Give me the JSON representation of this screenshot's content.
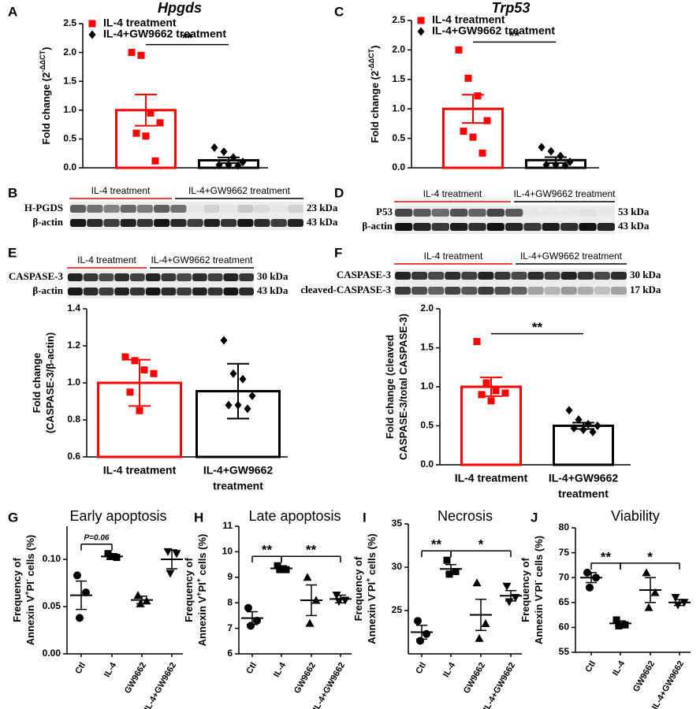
{
  "chart_data": [
    {
      "type": "bar",
      "panel": "A",
      "title": "Hpgds",
      "title_style": "italic",
      "ylabel": [
        [
          "Fold change (2",
          {
            "sup": "-ΔΔCT"
          },
          ")"
        ]
      ],
      "ylim": [
        0,
        2.5
      ],
      "yticks": [
        {
          "value": 0,
          "label": "0.0"
        },
        0.5,
        {
          "value": 1,
          "label": "1.0"
        },
        1.5,
        {
          "value": 2,
          "label": "2.0"
        },
        2.5
      ],
      "legend": true,
      "series": [
        {
          "name": "IL-4 treatment",
          "color": "#ff0000",
          "marker": "square",
          "value": 1.0,
          "error": 0.27,
          "points": [
            2.0,
            1.95,
            0.95,
            0.78,
            0.6,
            0.55,
            0.12
          ]
        },
        {
          "name": "IL-4+GW9662 treatment",
          "color": "#000000",
          "marker": "diamond",
          "value": 0.13,
          "error": 0.05,
          "points": [
            0.35,
            0.28,
            0.18,
            0.1,
            0.05,
            0.05,
            0.04
          ]
        }
      ],
      "annotations": [
        {
          "text": "**",
          "between": [
            0,
            1
          ]
        }
      ]
    },
    {
      "type": "bar",
      "panel": "C",
      "title": "Trp53",
      "title_style": "italic",
      "ylabel": [
        [
          "Fold change (2",
          {
            "sup": "-ΔΔCT"
          },
          ")"
        ]
      ],
      "ylim": [
        0,
        2.5
      ],
      "yticks": [
        {
          "value": 0,
          "label": "0.0"
        },
        0.5,
        {
          "value": 1,
          "label": "1.0"
        },
        1.5,
        {
          "value": 2,
          "label": "2.0"
        },
        2.5
      ],
      "legend": true,
      "series": [
        {
          "name": "IL-4 treatment",
          "color": "#ff0000",
          "marker": "square",
          "value": 1.0,
          "error": 0.24,
          "points": [
            2.0,
            1.52,
            1.22,
            0.8,
            0.62,
            0.52,
            0.25
          ]
        },
        {
          "name": "IL-4+GW9662 treatment",
          "color": "#000000",
          "marker": "diamond",
          "value": 0.13,
          "error": 0.05,
          "points": [
            0.35,
            0.28,
            0.2,
            0.1,
            0.05,
            0.05,
            0.04
          ]
        }
      ],
      "annotations": [
        {
          "text": "**",
          "between": [
            0,
            1
          ]
        }
      ]
    },
    {
      "type": "bar",
      "ylabel": [
        [
          "Fold change"
        ],
        [
          "(CASPASE-3/β-actin)"
        ]
      ],
      "ylim": [
        0.6,
        1.4
      ],
      "yticks": [
        0.6,
        0.8,
        {
          "value": 1,
          "label": "1.0"
        },
        1.2,
        1.4
      ],
      "categories": [
        [
          "IL-4 treatment"
        ],
        [
          "IL-4+GW9662",
          "treatment"
        ]
      ],
      "series": [
        {
          "color": "#ff0000",
          "marker": "square",
          "value": 1.0,
          "error": 0.125,
          "points": [
            1.14,
            1.12,
            1.07,
            1.05,
            0.95,
            0.85
          ]
        },
        {
          "color": "#000000",
          "marker": "diamond",
          "value": 0.955,
          "error": 0.148,
          "points": [
            1.23,
            1.05,
            1.02,
            0.93,
            0.88,
            0.88,
            0.86
          ]
        }
      ]
    },
    {
      "type": "bar",
      "ylabel": [
        [
          "Fold change (cleaved"
        ],
        [
          "CASPASE-3/total CASPASE-3)"
        ]
      ],
      "ylim": [
        0,
        2.0
      ],
      "yticks": [
        {
          "value": 0,
          "label": "0.0"
        },
        0.5,
        {
          "value": 1,
          "label": "1.0"
        },
        1.5,
        {
          "value": 2,
          "label": "2.0"
        }
      ],
      "categories": [
        [
          "IL-4 treatment"
        ],
        [
          "IL-4+GW9662",
          "treatment"
        ]
      ],
      "series": [
        {
          "color": "#ff0000",
          "marker": "square",
          "value": 1.0,
          "error": 0.12,
          "points": [
            1.58,
            1.05,
            0.95,
            0.92,
            0.9,
            0.82
          ]
        },
        {
          "color": "#000000",
          "marker": "diamond",
          "value": 0.5,
          "error": 0.04,
          "points": [
            0.7,
            0.58,
            0.52,
            0.5,
            0.47,
            0.45,
            0.42
          ]
        }
      ],
      "annotations": [
        {
          "text": "**",
          "between": [
            0,
            1
          ]
        }
      ]
    },
    {
      "type": "dot",
      "panel": "G",
      "title": "Early apoptosis",
      "color": "#000000",
      "ylabel": [
        [
          "Frequency of"
        ],
        [
          "Annexin V",
          {
            "sup": "+"
          },
          "PI",
          {
            "sup": "-"
          },
          " cells (%)"
        ]
      ],
      "ylim": [
        0,
        0.135
      ],
      "yticks": [
        {
          "value": 0,
          "label": "0.00"
        },
        0.05,
        {
          "value": 0.1,
          "label": "0.10"
        }
      ],
      "categories": [
        "Ctl",
        "IL-4",
        "GW9662",
        "IL-4+GW9662"
      ],
      "series": [
        {
          "marker": "circle",
          "value": 0.062,
          "error": 0.015,
          "points": [
            0.083,
            0.065,
            0.038
          ]
        },
        {
          "marker": "square",
          "value": 0.103,
          "error": 0.003,
          "points": [
            0.106,
            0.102,
            0.103
          ]
        },
        {
          "marker": "triangle",
          "value": 0.057,
          "error": 0.004,
          "points": [
            0.062,
            0.056,
            0.053
          ]
        },
        {
          "marker": "triangle-down",
          "value": 0.1,
          "error": 0.01,
          "points": [
            0.108,
            0.106,
            0.085
          ]
        }
      ],
      "annotations": [
        {
          "text": "P=0.06",
          "between": [
            0,
            1
          ]
        }
      ]
    },
    {
      "type": "dot",
      "panel": "H",
      "title": "Late apoptosis",
      "color": "#000000",
      "ylabel": [
        [
          "Frequency of"
        ],
        [
          "Annexin V",
          {
            "sup": "+"
          },
          "PI",
          {
            "sup": "+"
          },
          " cells (%)"
        ]
      ],
      "ylim": [
        6,
        11
      ],
      "yticks": [
        6,
        7,
        8,
        9,
        10,
        11
      ],
      "categories": [
        "Ctl",
        "IL-4",
        "GW9662",
        "IL-4+GW9662"
      ],
      "series": [
        {
          "marker": "circle",
          "value": 7.4,
          "error": 0.25,
          "points": [
            7.8,
            7.3,
            7.1
          ]
        },
        {
          "marker": "square",
          "value": 9.35,
          "error": 0.1,
          "points": [
            9.45,
            9.3,
            9.3
          ]
        },
        {
          "marker": "triangle",
          "value": 8.1,
          "error": 0.6,
          "points": [
            9.0,
            8.1,
            7.2
          ]
        },
        {
          "marker": "triangle-down",
          "value": 8.15,
          "error": 0.15,
          "points": [
            8.3,
            8.1,
            8.05
          ]
        }
      ],
      "annotations": [
        {
          "text": "**",
          "between": [
            0,
            1
          ]
        },
        {
          "text": "**",
          "between": [
            1,
            3
          ]
        }
      ]
    },
    {
      "type": "dot",
      "panel": "I",
      "title": "Necrosis",
      "color": "#000000",
      "ylabel": [
        [
          "Frequency of"
        ],
        [
          "Annexin V",
          {
            "sup": "-"
          },
          "PI",
          {
            "sup": "+"
          },
          " cells (%)"
        ]
      ],
      "ylim": [
        20,
        35
      ],
      "yticks": [
        25,
        30,
        35
      ],
      "categories": [
        "Ctl",
        "IL-4",
        "GW9662",
        "IL-4+GW9662"
      ],
      "series": [
        {
          "marker": "circle",
          "value": 22.5,
          "error": 0.8,
          "points": [
            23.8,
            22.3,
            21.5
          ]
        },
        {
          "marker": "square",
          "value": 29.8,
          "error": 0.5,
          "points": [
            30.8,
            29.5,
            29.2
          ]
        },
        {
          "marker": "triangle",
          "value": 24.5,
          "error": 1.8,
          "points": [
            28.2,
            23.5,
            21.8
          ]
        },
        {
          "marker": "triangle-down",
          "value": 26.7,
          "error": 0.6,
          "points": [
            27.8,
            26.5,
            26.0
          ]
        }
      ],
      "annotations": [
        {
          "text": "**",
          "between": [
            0,
            1
          ]
        },
        {
          "text": "*",
          "between": [
            1,
            3
          ]
        }
      ]
    },
    {
      "type": "dot",
      "panel": "J",
      "title": "Viability",
      "color": "#000000",
      "ylabel": [
        [
          "Frequency of"
        ],
        [
          "Annexin V",
          {
            "sup": "-"
          },
          "PI",
          {
            "sup": "-"
          },
          " cells (%)"
        ]
      ],
      "ylim": [
        55,
        80
      ],
      "yticks": [
        55,
        60,
        65,
        70,
        75,
        80
      ],
      "categories": [
        "Ctl",
        "IL-4",
        "GW9662",
        "IL-4+GW9662"
      ],
      "series": [
        {
          "marker": "circle",
          "value": 70,
          "error": 1.0,
          "points": [
            71,
            70,
            68
          ]
        },
        {
          "marker": "square",
          "value": 60.8,
          "error": 0.5,
          "points": [
            61.5,
            60.5,
            60.3
          ]
        },
        {
          "marker": "triangle",
          "value": 67.5,
          "error": 2.5,
          "points": [
            71,
            67,
            64
          ]
        },
        {
          "marker": "triangle-down",
          "value": 65,
          "error": 0.6,
          "points": [
            66,
            65,
            64.5
          ]
        }
      ],
      "annotations": [
        {
          "text": "**",
          "between": [
            0,
            1
          ]
        },
        {
          "text": "*",
          "between": [
            1,
            3
          ]
        }
      ]
    }
  ],
  "blots": [
    {
      "panel": "B",
      "groups": [
        {
          "label": "IL-4 treatment",
          "color": "#ff0000"
        },
        {
          "label": "IL-4+GW9662 treatment",
          "color": "#000000"
        }
      ],
      "rows": [
        {
          "label": "H-PGDS",
          "size": "23 kDa"
        },
        {
          "label": "β-actin",
          "size": "43 kDa"
        }
      ]
    },
    {
      "panel": "D",
      "groups": [
        {
          "label": "IL-4 treatment",
          "color": "#ff0000"
        },
        {
          "label": "IL-4+GW9662 treatment",
          "color": "#000000"
        }
      ],
      "rows": [
        {
          "label": "P53",
          "size": "53 kDa"
        },
        {
          "label": "β-actin",
          "size": "43 kDa"
        }
      ]
    },
    {
      "panel": "E",
      "groups": [
        {
          "label": "IL-4 treatment",
          "color": "#ff0000"
        },
        {
          "label": "IL-4+GW9662 treatment",
          "color": "#000000"
        }
      ],
      "rows": [
        {
          "label": "CASPASE-3",
          "size": "30 kDa"
        },
        {
          "label": "β-actin",
          "size": "43 kDa"
        }
      ]
    },
    {
      "panel": "F",
      "groups": [
        {
          "label": "IL-4 treatment",
          "color": "#ff0000"
        },
        {
          "label": "IL-4+GW9662 treatment",
          "color": "#000000"
        }
      ],
      "rows": [
        {
          "label": "CASPASE-3",
          "size": "30 kDa"
        },
        {
          "label": "cleaved-CASPASE-3",
          "size": "17 kDa"
        }
      ]
    }
  ]
}
